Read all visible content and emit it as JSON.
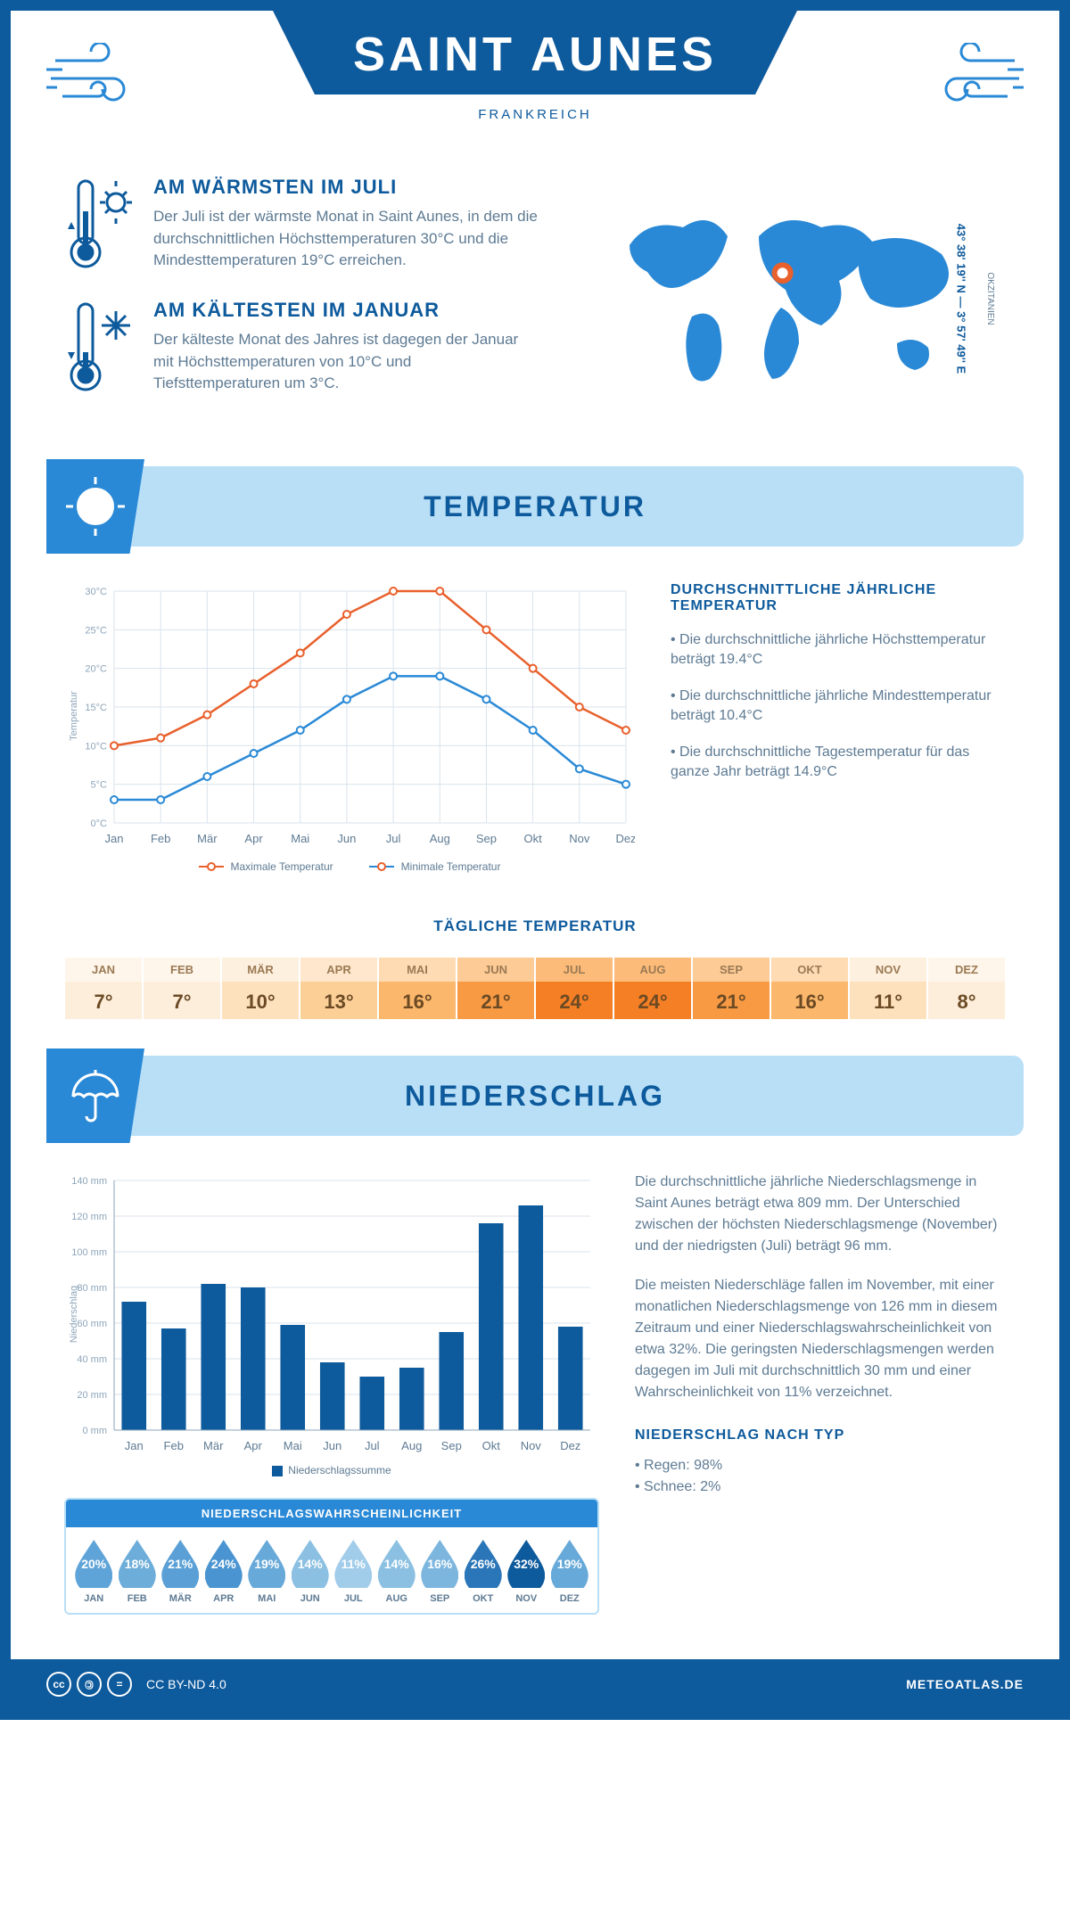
{
  "header": {
    "title": "SAINT AUNES",
    "subtitle": "FRANKREICH"
  },
  "location": {
    "coords": "43° 38' 19'' N — 3° 57' 49'' E",
    "region": "OKZITANIEN",
    "marker": {
      "cx_pct": 48,
      "cy_pct": 38
    }
  },
  "warmest": {
    "title": "AM WÄRMSTEN IM JULI",
    "text": "Der Juli ist der wärmste Monat in Saint Aunes, in dem die durchschnittlichen Höchsttemperaturen 30°C und die Mindesttemperaturen 19°C erreichen."
  },
  "coldest": {
    "title": "AM KÄLTESTEN IM JANUAR",
    "text": "Der kälteste Monat des Jahres ist dagegen der Januar mit Höchsttemperaturen von 10°C und Tiefsttemperaturen um 3°C."
  },
  "temperature": {
    "section_title": "TEMPERATUR",
    "type": "line",
    "months": [
      "Jan",
      "Feb",
      "Mär",
      "Apr",
      "Mai",
      "Jun",
      "Jul",
      "Aug",
      "Sep",
      "Okt",
      "Nov",
      "Dez"
    ],
    "max_values": [
      10,
      11,
      14,
      18,
      22,
      27,
      30,
      30,
      25,
      20,
      15,
      12
    ],
    "min_values": [
      3,
      3,
      6,
      9,
      12,
      16,
      19,
      19,
      16,
      12,
      7,
      5
    ],
    "max_color": "#e8602c",
    "min_color": "#2a89d6",
    "grid_color": "#d9e3ec",
    "axis_color": "#8da5ba",
    "ylim": [
      0,
      30
    ],
    "ytick_step": 5,
    "ylabel": "Temperatur",
    "legend_max": "Maximale Temperatur",
    "legend_min": "Minimale Temperatur",
    "info_title": "DURCHSCHNITTLICHE JÄHRLICHE TEMPERATUR",
    "info_b1": "• Die durchschnittliche jährliche Höchsttemperatur beträgt 19.4°C",
    "info_b2": "• Die durchschnittliche jährliche Mindesttemperatur beträgt 10.4°C",
    "info_b3": "• Die durchschnittliche Tagestemperatur für das ganze Jahr beträgt 14.9°C"
  },
  "daily": {
    "title": "TÄGLICHE TEMPERATUR",
    "months": [
      "JAN",
      "FEB",
      "MÄR",
      "APR",
      "MAI",
      "JUN",
      "JUL",
      "AUG",
      "SEP",
      "OKT",
      "NOV",
      "DEZ"
    ],
    "values": [
      "7°",
      "7°",
      "10°",
      "13°",
      "16°",
      "21°",
      "24°",
      "24°",
      "21°",
      "16°",
      "11°",
      "8°"
    ],
    "bg_colors": [
      "#fdeedb",
      "#fdeedb",
      "#fde1bd",
      "#fccf97",
      "#fbb76b",
      "#f89a44",
      "#f57f25",
      "#f57f25",
      "#f89a44",
      "#fbb76b",
      "#fde1bd",
      "#fdeedb"
    ],
    "header_colors": [
      "#fef6ea",
      "#fef6ea",
      "#fef0df",
      "#fee7cc",
      "#fedbb2",
      "#fdcb95",
      "#fcbb79",
      "#fcbb79",
      "#fdcb95",
      "#fedbb2",
      "#fef0df",
      "#fef6ea"
    ]
  },
  "precip": {
    "section_title": "NIEDERSCHLAG",
    "type": "bar",
    "months": [
      "Jan",
      "Feb",
      "Mär",
      "Apr",
      "Mai",
      "Jun",
      "Jul",
      "Aug",
      "Sep",
      "Okt",
      "Nov",
      "Dez"
    ],
    "values": [
      72,
      57,
      82,
      80,
      59,
      38,
      30,
      35,
      55,
      116,
      126,
      58
    ],
    "bar_color": "#0d5a9c",
    "grid_color": "#d9e3ec",
    "ylim": [
      0,
      140
    ],
    "ytick_step": 20,
    "ylabel": "Niederschlag",
    "legend": "Niederschlagssumme",
    "para1": "Die durchschnittliche jährliche Niederschlagsmenge in Saint Aunes beträgt etwa 809 mm. Der Unterschied zwischen der höchsten Niederschlagsmenge (November) und der niedrigsten (Juli) beträgt 96 mm.",
    "para2": "Die meisten Niederschläge fallen im November, mit einer monatlichen Niederschlagsmenge von 126 mm in diesem Zeitraum und einer Niederschlagswahrscheinlichkeit von etwa 32%. Die geringsten Niederschlagsmengen werden dagegen im Juli mit durchschnittlich 30 mm und einer Wahrscheinlichkeit von 11% verzeichnet.",
    "type_title": "NIEDERSCHLAG NACH TYP",
    "type_rain": "Regen: 98%",
    "type_snow": "Schnee: 2%"
  },
  "probability": {
    "title": "NIEDERSCHLAGSWAHRSCHEINLICHKEIT",
    "months": [
      "JAN",
      "FEB",
      "MÄR",
      "APR",
      "MAI",
      "JUN",
      "JUL",
      "AUG",
      "SEP",
      "OKT",
      "NOV",
      "DEZ"
    ],
    "values": [
      "20%",
      "18%",
      "21%",
      "24%",
      "19%",
      "14%",
      "11%",
      "14%",
      "16%",
      "26%",
      "32%",
      "19%"
    ],
    "colors": [
      "#5fa4d8",
      "#6cadd9",
      "#5aa0d6",
      "#4a95d1",
      "#67a9d8",
      "#8bc0e2",
      "#a1ccea",
      "#8bc0e2",
      "#7cb6de",
      "#2b76b8",
      "#0d5a9c",
      "#67a9d8"
    ]
  },
  "footer": {
    "license": "CC BY-ND 4.0",
    "site": "METEOATLAS.DE"
  }
}
